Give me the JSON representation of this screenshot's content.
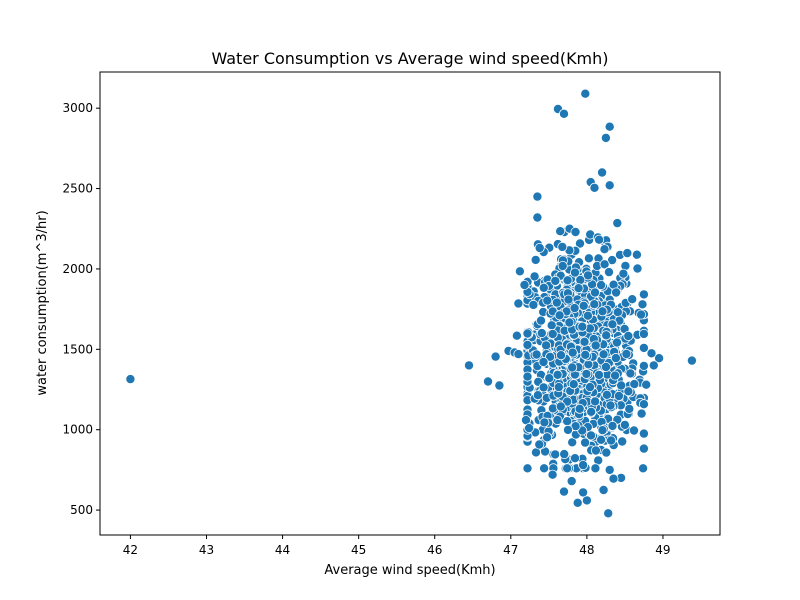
{
  "chart_data": {
    "type": "scatter",
    "title": "Water Consumption vs Average wind speed(Kmh)",
    "xlabel": "Average wind speed(Kmh)",
    "ylabel": "water consumption(m^3/hr)",
    "xlim": [
      41.6,
      49.75
    ],
    "ylim": [
      345,
      3225
    ],
    "xticks": [
      42,
      43,
      44,
      45,
      46,
      47,
      48,
      49
    ],
    "yticks": [
      500,
      1000,
      1500,
      2000,
      2500,
      3000
    ],
    "grid": false,
    "marker_color": "#1f77b4",
    "marker_edge_color": "#ffffff",
    "cluster_center": [
      47.93,
      1480
    ],
    "outliers": [
      [
        42.0,
        1315
      ],
      [
        46.45,
        1400
      ],
      [
        46.7,
        1300
      ],
      [
        46.8,
        1455
      ],
      [
        46.85,
        1275
      ],
      [
        46.97,
        1490
      ],
      [
        47.05,
        1480
      ],
      [
        47.1,
        1470
      ],
      [
        47.08,
        1585
      ],
      [
        47.1,
        1785
      ],
      [
        47.12,
        1985
      ],
      [
        47.18,
        1900
      ],
      [
        49.38,
        1430
      ],
      [
        48.95,
        1445
      ],
      [
        48.85,
        1475
      ],
      [
        47.62,
        2995
      ],
      [
        47.7,
        2965
      ],
      [
        47.98,
        3090
      ],
      [
        48.25,
        2815
      ],
      [
        48.3,
        2885
      ],
      [
        48.2,
        2600
      ],
      [
        48.05,
        2540
      ],
      [
        48.1,
        2505
      ],
      [
        48.3,
        2520
      ],
      [
        47.35,
        2450
      ],
      [
        47.35,
        2320
      ],
      [
        47.65,
        2235
      ],
      [
        47.38,
        2130
      ],
      [
        47.85,
        2230
      ],
      [
        48.4,
        2285
      ],
      [
        48.28,
        480
      ],
      [
        48.0,
        560
      ],
      [
        47.88,
        545
      ],
      [
        47.95,
        610
      ],
      [
        47.7,
        615
      ],
      [
        48.22,
        625
      ],
      [
        48.45,
        700
      ],
      [
        48.3,
        750
      ],
      [
        48.35,
        695
      ],
      [
        47.8,
        680
      ],
      [
        47.55,
        720
      ],
      [
        47.95,
        780
      ],
      [
        48.62,
        995
      ],
      [
        48.5,
        1030
      ],
      [
        48.72,
        1100
      ],
      [
        47.22,
        1000
      ],
      [
        47.2,
        1060
      ],
      [
        47.24,
        1010
      ],
      [
        48.78,
        1280
      ],
      [
        48.88,
        1400
      ]
    ]
  }
}
